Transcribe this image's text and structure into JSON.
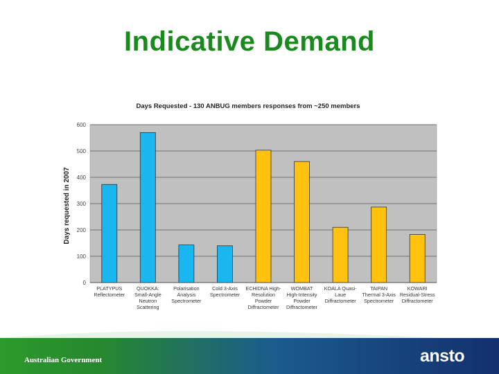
{
  "slide": {
    "title": "Indicative Demand",
    "footer_left": "Australian Government",
    "logo_text": "ansto"
  },
  "chart_data": {
    "type": "bar",
    "title": "Days Requested - 130 ANBUG members responses from ~250 members",
    "ylabel": "Days requested in 2007",
    "xlabel": "",
    "ylim": [
      0,
      600
    ],
    "yticks": [
      0,
      100,
      200,
      300,
      400,
      500,
      600
    ],
    "grid": true,
    "categories": [
      [
        "PLATYPUS",
        "Reflectometer"
      ],
      [
        "QUOKKA:",
        "Small-Angle",
        "Neutron",
        "Scattering"
      ],
      [
        "Polarisation",
        "Analysis",
        "Spectrometer"
      ],
      [
        "Cold 3-Axis",
        "Spectrometer"
      ],
      [
        "ECHIDNA High-",
        "Resolution",
        "Powder",
        "Diffractometer"
      ],
      [
        "WOMBAT",
        "High-Intensity",
        "Powder",
        "Diffractometer"
      ],
      [
        "KOALA Quasi-",
        "Laue",
        "Diffractometer"
      ],
      [
        "TAIPAN",
        "Thermal 3-Axis",
        "Spectrometer"
      ],
      [
        "KOWARI",
        "Residual-Stress",
        "Diffractometer"
      ]
    ],
    "values": [
      373,
      570,
      143,
      140,
      503,
      460,
      210,
      287,
      183
    ],
    "bar_colors": [
      "#1ab6f0",
      "#1ab6f0",
      "#1ab6f0",
      "#1ab6f0",
      "#ffc20e",
      "#ffc20e",
      "#ffc20e",
      "#ffc20e",
      "#ffc20e"
    ],
    "plot_bg": "#c0c0c0",
    "bar_stroke": "#333333"
  }
}
